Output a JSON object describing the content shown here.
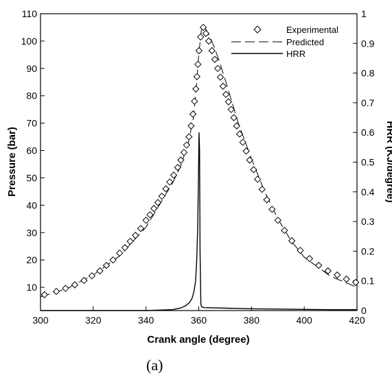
{
  "caption": "(a)",
  "chart_data": {
    "type": "line",
    "xlabel": "Crank angle (degree)",
    "ylabel": "Pressure (bar)",
    "y2label": "HRR (KJ/degree)",
    "xlim": [
      300,
      420
    ],
    "ylim": [
      1.5,
      110
    ],
    "y2lim": [
      0,
      1
    ],
    "xticks": [
      "300",
      "320",
      "340",
      "360",
      "380",
      "400",
      "420"
    ],
    "yticks": [
      "10",
      "20",
      "30",
      "40",
      "50",
      "60",
      "70",
      "80",
      "90",
      "100",
      "110"
    ],
    "y2ticks": [
      "0",
      "0.1",
      "0.2",
      "0.3",
      "0.4",
      "0.5",
      "0.6",
      "0.7",
      "0.8",
      "0.9",
      "1"
    ],
    "grid": false,
    "legend_position": "top-right",
    "series": [
      {
        "name": "Experimental",
        "style": "diamond-markers",
        "axis": "left",
        "x": [
          301.5,
          306,
          309.5,
          313,
          316.5,
          319.5,
          322.5,
          325,
          327.5,
          330,
          332,
          334,
          336,
          338,
          340,
          341.5,
          343,
          344.5,
          346,
          347.5,
          349,
          350.5,
          352,
          353.2,
          354.4,
          355.4,
          356.3,
          357.1,
          357.8,
          358.4,
          358.9,
          359.3,
          359.7,
          360.1,
          360.7,
          361.7,
          362.7,
          363.8,
          365,
          366.1,
          367.2,
          368.2,
          369.2,
          370.3,
          371.3,
          372.3,
          373.3,
          374.4,
          375.5,
          376.7,
          378,
          379.3,
          380.8,
          382.3,
          384,
          385.8,
          387.8,
          390,
          392.5,
          395.3,
          398.5,
          402,
          405.5,
          409,
          412.5,
          416,
          419.5
        ],
        "y": [
          7.3,
          8.5,
          9.6,
          10.9,
          12.5,
          14.2,
          16.0,
          18.0,
          20.0,
          22.5,
          24.5,
          26.8,
          29.0,
          31.5,
          34.5,
          36.5,
          38.8,
          41.0,
          43.3,
          46.0,
          48.5,
          51.0,
          53.8,
          56.5,
          59.3,
          62.0,
          65.0,
          69.0,
          73.3,
          78.0,
          82.5,
          87.0,
          91.5,
          96.5,
          101.5,
          105.0,
          102.8,
          100.0,
          96.5,
          93.3,
          90.0,
          86.8,
          83.5,
          80.5,
          77.8,
          75.0,
          72.0,
          69.0,
          66.0,
          63.0,
          59.8,
          56.5,
          53.0,
          49.5,
          45.8,
          42.0,
          38.5,
          34.5,
          30.8,
          27.0,
          23.5,
          20.5,
          18.0,
          16.0,
          14.5,
          13.0,
          11.8
        ]
      },
      {
        "name": "Predicted",
        "style": "dashed-line",
        "axis": "left",
        "x": [
          300,
          310,
          320,
          330,
          340,
          345,
          350,
          353,
          356,
          358,
          359,
          360,
          361,
          362,
          364,
          366,
          368,
          370,
          375,
          380,
          385,
          390,
          395,
          400,
          410,
          420
        ],
        "y": [
          6.5,
          9.5,
          14.5,
          21.5,
          32.0,
          40.0,
          48.0,
          54.0,
          62.5,
          72.0,
          82.0,
          95.0,
          104.0,
          105.5,
          102.0,
          97.5,
          92.0,
          86.0,
          70.0,
          57.0,
          45.0,
          35.0,
          27.0,
          21.0,
          14.0,
          10.0
        ]
      },
      {
        "name": "HRR",
        "style": "solid-line",
        "axis": "right",
        "x": [
          300,
          340,
          350,
          353,
          355,
          356.5,
          357.5,
          358.2,
          358.8,
          359.2,
          359.6,
          359.9,
          360.1,
          360.3,
          360.5,
          360.8,
          361.2,
          362,
          370,
          380,
          390,
          400,
          410,
          420
        ],
        "y": [
          0.0,
          0.0,
          0.003,
          0.008,
          0.016,
          0.027,
          0.042,
          0.065,
          0.1,
          0.16,
          0.28,
          0.45,
          0.6,
          0.54,
          0.2,
          0.02,
          0.012,
          0.01,
          0.008,
          0.006,
          0.005,
          0.004,
          0.003,
          0.003
        ]
      }
    ]
  }
}
